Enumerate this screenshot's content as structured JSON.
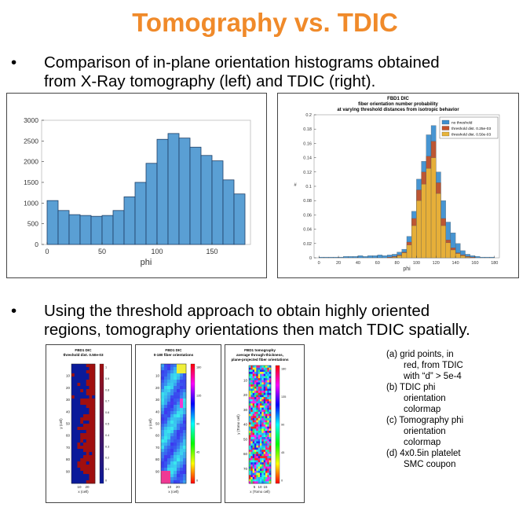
{
  "title": "Tomography vs. TDIC",
  "bullets": [
    {
      "marker": "•",
      "line1": "Comparison of in-plane orientation histograms obtained",
      "line2": "from X-Ray tomography (left) and TDIC (right)."
    },
    {
      "marker": "•",
      "line1": "Using the threshold approach to obtain highly oriented",
      "line2": "regions, tomography orientations then match TDIC spatially."
    }
  ],
  "chart_data": [
    {
      "type": "bar",
      "xlabel": "phi",
      "ylabel": "",
      "xlim": [
        -5,
        185
      ],
      "ylim": [
        0,
        3000
      ],
      "xticks": [
        0,
        50,
        100,
        150
      ],
      "yticks": [
        0,
        500,
        1000,
        1500,
        2000,
        2500,
        3000
      ],
      "bin_width": 10,
      "bin_starts": [
        0,
        10,
        20,
        30,
        40,
        50,
        60,
        70,
        80,
        90,
        100,
        110,
        120,
        130,
        140,
        150,
        160,
        170
      ],
      "values": [
        1060,
        820,
        720,
        700,
        680,
        700,
        820,
        1150,
        1500,
        1960,
        2540,
        2680,
        2570,
        2350,
        2150,
        2020,
        1560,
        1220
      ],
      "color": "#5a9fd4"
    },
    {
      "type": "bar",
      "title": "FBD1 DIC",
      "subtitle": "fiber orientation number probability",
      "subtitle2": "at varying threshold distances from isotropic behavior",
      "xlabel": "phi",
      "ylabel": "#",
      "xlim": [
        -5,
        185
      ],
      "ylim": [
        0,
        0.2
      ],
      "xticks": [
        0,
        20,
        40,
        60,
        80,
        100,
        120,
        140,
        160,
        180
      ],
      "yticks": [
        "0",
        "0.02",
        "0.04",
        "0.06",
        "0.08",
        "0.1",
        "0.12",
        "0.14",
        "0.16",
        "0.18",
        "0.2"
      ],
      "bin_width": 5,
      "bin_starts": [
        0,
        5,
        10,
        15,
        20,
        25,
        30,
        35,
        40,
        45,
        50,
        55,
        60,
        65,
        70,
        75,
        80,
        85,
        90,
        95,
        100,
        105,
        110,
        115,
        120,
        125,
        130,
        135,
        140,
        145,
        150,
        155,
        160,
        165,
        170,
        175
      ],
      "series": [
        {
          "name": "no threshold",
          "color": "#3d8fd0",
          "values": [
            0.001,
            0.001,
            0.001,
            0.001,
            0.001,
            0.002,
            0.002,
            0.002,
            0.003,
            0.002,
            0.003,
            0.003,
            0.004,
            0.003,
            0.004,
            0.005,
            0.008,
            0.012,
            0.03,
            0.065,
            0.11,
            0.135,
            0.172,
            0.185,
            0.12,
            0.08,
            0.05,
            0.035,
            0.02,
            0.01,
            0.005,
            0.003,
            0.002,
            0.001,
            0.001,
            0.001
          ]
        },
        {
          "name": "threshold dist. 0.25e-03",
          "color": "#c4522a",
          "values": [
            0,
            0,
            0,
            0,
            0,
            0,
            0,
            0,
            0,
            0,
            0,
            0,
            0,
            0,
            0.001,
            0.002,
            0.004,
            0.008,
            0.022,
            0.055,
            0.095,
            0.12,
            0.142,
            0.163,
            0.105,
            0.055,
            0.025,
            0.014,
            0.007,
            0.004,
            0.002,
            0.001,
            0,
            0,
            0,
            0
          ]
        },
        {
          "name": "threshold dist. 0.50e-03",
          "color": "#e8b43a",
          "values": [
            0,
            0,
            0,
            0,
            0,
            0,
            0,
            0,
            0,
            0,
            0,
            0,
            0,
            0,
            0,
            0.001,
            0.003,
            0.007,
            0.018,
            0.045,
            0.08,
            0.103,
            0.125,
            0.14,
            0.09,
            0.045,
            0.021,
            0.011,
            0.006,
            0.003,
            0.001,
            0,
            0,
            0,
            0,
            0
          ]
        }
      ],
      "legend": "top-right"
    }
  ],
  "panels": [
    {
      "title": "FBD1 DIC",
      "subtitle": "threshold dist. 0.50e-03",
      "ylabel": "y (cell)",
      "xlabel": "x (cell)",
      "yticks": [
        "10",
        "20",
        "30",
        "40",
        "50",
        "60",
        "70",
        "80",
        "90"
      ],
      "xticks": [
        "10",
        "20"
      ],
      "cbar_ticks": [
        "1",
        "0.9",
        "0.8",
        "0.7",
        "0.6",
        "0.5",
        "0.4",
        "0.3",
        "0.2",
        "0.1",
        "0"
      ],
      "colors": {
        "a": "#0a1a9a",
        "b": "#a00f0f"
      }
    },
    {
      "title": "FBD1 DIC",
      "subtitle": "0-180 fiber orientations",
      "ylabel": "y (cell)",
      "xlabel": "x (cell)",
      "yticks": [
        "10",
        "20",
        "30",
        "40",
        "50",
        "60",
        "70",
        "80",
        "90"
      ],
      "xticks": [
        "10",
        "20"
      ],
      "cbar_ticks": [
        "180",
        "135",
        "90",
        "45",
        "0"
      ]
    },
    {
      "title": "FBD1 tomography",
      "subtitle": "average through-thickness,",
      "subtitle2": "plane-projected fiber orientations",
      "ylabel": "y (Tomo cell)",
      "xlabel": "x (Tomo cell)",
      "yticks": [
        "10",
        "20",
        "30",
        "40",
        "50",
        "60",
        "70"
      ],
      "xticks": [
        "5",
        "10",
        "15"
      ],
      "cbar_ticks": [
        "180",
        "135",
        "90",
        "45",
        "0"
      ]
    }
  ],
  "captions": [
    "(a) grid points, in",
    "red, from TDIC",
    "with “d” > 5e-4",
    "(b) TDIC phi",
    "orientation",
    "colormap",
    "(c) Tomography phi",
    "orientation",
    "colormap",
    "(d) 4x0.5in platelet",
    "SMC coupon"
  ]
}
